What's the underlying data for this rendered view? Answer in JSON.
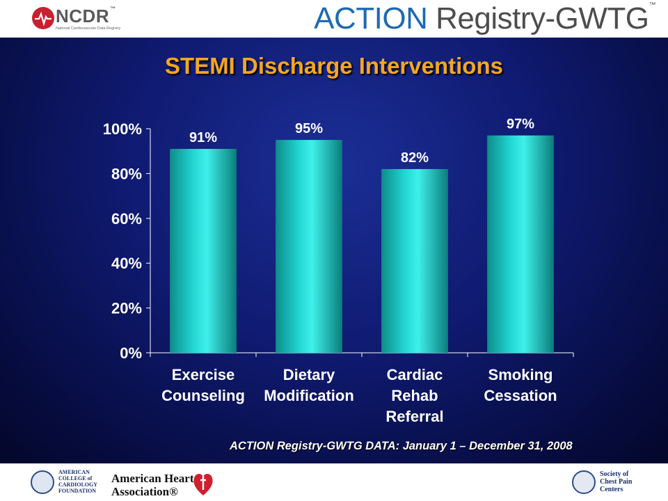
{
  "header": {
    "ncdr_logo": {
      "word": "NCDR",
      "tm": "™",
      "subtitle": "National Cardiovascular Data Registry"
    },
    "action_logo": {
      "part1": "ACTION",
      "part2": " Registry",
      "part3": "-GWTG",
      "tm": "™"
    }
  },
  "slide": {
    "title": "STEMI Discharge Interventions",
    "footnote": "ACTION Registry-GWTG DATA: January 1 – December 31, 2008"
  },
  "chart_data": {
    "type": "bar",
    "title": "STEMI Discharge Interventions",
    "categories": [
      [
        "Exercise",
        "Counseling"
      ],
      [
        "Dietary",
        "Modification"
      ],
      [
        "Cardiac",
        "Rehab",
        "Referral"
      ],
      [
        "Smoking",
        "Cessation"
      ]
    ],
    "values": [
      91,
      95,
      82,
      97
    ],
    "data_labels": [
      "91%",
      "95%",
      "82%",
      "97%"
    ],
    "y_ticks": [
      "0%",
      "20%",
      "40%",
      "60%",
      "80%",
      "100%"
    ],
    "ylim": [
      0,
      100
    ],
    "xlabel": "",
    "ylabel": "",
    "grid": false,
    "bar_color": "#22d6d2"
  },
  "footer": {
    "acc": [
      "AMERICAN",
      "COLLEGE of",
      "CARDIOLOGY",
      "FOUNDATION"
    ],
    "aha": [
      "American Heart",
      "Association®"
    ],
    "scpc": [
      "Society of",
      "Chest Pain",
      "Centers"
    ]
  },
  "colors": {
    "title": "#f5a623",
    "background_center": "#1c2e96",
    "background_edge": "#03072a",
    "bar": "#22d6d2",
    "action_blue": "#1e6ab0"
  }
}
